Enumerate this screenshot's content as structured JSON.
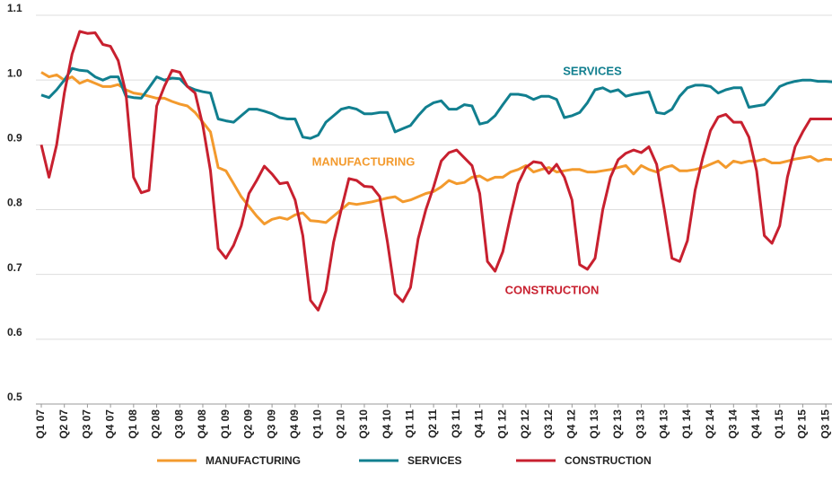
{
  "chart_data": {
    "type": "line",
    "categories": [
      "Q1 07",
      null,
      null,
      "Q2 07",
      null,
      null,
      "Q3 07",
      null,
      null,
      "Q4 07",
      null,
      null,
      "Q1 08",
      null,
      null,
      "Q2 08",
      null,
      null,
      "Q3 08",
      null,
      null,
      "Q4 08",
      null,
      null,
      "Q1 09",
      null,
      null,
      "Q2 09",
      null,
      null,
      "Q3 09",
      null,
      null,
      "Q4 09",
      null,
      null,
      "Q1 10",
      null,
      null,
      "Q2 10",
      null,
      null,
      "Q3 10",
      null,
      null,
      "Q4 10",
      null,
      null,
      "Q1 11",
      null,
      null,
      "Q2 11",
      null,
      null,
      "Q3 11",
      null,
      null,
      "Q4 11",
      null,
      null,
      "Q1 12",
      null,
      null,
      "Q2 12",
      null,
      null,
      "Q3 12",
      null,
      null,
      "Q4 12",
      null,
      null,
      "Q1 13",
      null,
      null,
      "Q2 13",
      null,
      null,
      "Q3 13",
      null,
      null,
      "Q4 13",
      null,
      null,
      "Q1 14",
      null,
      null,
      "Q2 14",
      null,
      null,
      "Q3 14",
      null,
      null,
      "Q4 14",
      null,
      null,
      "Q1 15",
      null,
      null,
      "Q2 15",
      null,
      null,
      "Q3 15",
      null
    ],
    "series": [
      {
        "name": "MANUFACTURING",
        "color": "#f39a2d",
        "values": [
          1.012,
          1.005,
          1.008,
          1.0,
          1.005,
          0.995,
          1.0,
          0.995,
          0.99,
          0.99,
          0.993,
          0.985,
          0.98,
          0.978,
          0.975,
          0.972,
          0.972,
          0.967,
          0.963,
          0.96,
          0.95,
          0.935,
          0.92,
          0.865,
          0.86,
          0.84,
          0.82,
          0.805,
          0.79,
          0.778,
          0.785,
          0.788,
          0.785,
          0.792,
          0.795,
          0.783,
          0.782,
          0.78,
          0.79,
          0.8,
          0.81,
          0.808,
          0.81,
          0.812,
          0.815,
          0.818,
          0.82,
          0.812,
          0.815,
          0.82,
          0.825,
          0.828,
          0.835,
          0.845,
          0.84,
          0.842,
          0.85,
          0.852,
          0.845,
          0.85,
          0.85,
          0.858,
          0.862,
          0.868,
          0.858,
          0.862,
          0.865,
          0.858,
          0.86,
          0.862,
          0.862,
          0.858,
          0.858,
          0.86,
          0.862,
          0.865,
          0.868,
          0.855,
          0.868,
          0.862,
          0.858,
          0.865,
          0.868,
          0.86,
          0.86,
          0.862,
          0.865,
          0.87,
          0.875,
          0.865,
          0.875,
          0.872,
          0.875,
          0.875,
          0.878,
          0.872,
          0.872,
          0.875,
          0.878,
          0.88,
          0.882,
          0.875,
          0.878,
          0.877
        ]
      },
      {
        "name": "SERVICES",
        "color": "#117f8f",
        "values": [
          0.977,
          0.973,
          0.985,
          1.0,
          1.018,
          1.015,
          1.014,
          1.005,
          1.0,
          1.005,
          1.005,
          0.975,
          0.973,
          0.972,
          0.988,
          1.005,
          1.0,
          1.003,
          1.002,
          0.99,
          0.985,
          0.982,
          0.98,
          0.94,
          0.937,
          0.935,
          0.945,
          0.955,
          0.955,
          0.952,
          0.948,
          0.942,
          0.94,
          0.94,
          0.912,
          0.91,
          0.915,
          0.935,
          0.945,
          0.955,
          0.958,
          0.955,
          0.948,
          0.948,
          0.95,
          0.95,
          0.92,
          0.925,
          0.93,
          0.945,
          0.958,
          0.965,
          0.968,
          0.955,
          0.955,
          0.962,
          0.96,
          0.932,
          0.935,
          0.945,
          0.962,
          0.978,
          0.978,
          0.976,
          0.97,
          0.975,
          0.975,
          0.97,
          0.942,
          0.945,
          0.95,
          0.965,
          0.985,
          0.988,
          0.982,
          0.985,
          0.975,
          0.978,
          0.98,
          0.982,
          0.95,
          0.948,
          0.955,
          0.975,
          0.988,
          0.992,
          0.992,
          0.99,
          0.98,
          0.985,
          0.988,
          0.988,
          0.958,
          0.96,
          0.962,
          0.975,
          0.99,
          0.995,
          0.998,
          1.0,
          1.0,
          0.998,
          0.998,
          0.997
        ]
      },
      {
        "name": "CONSTRUCTION",
        "color": "#c8202f",
        "values": [
          0.9,
          0.85,
          0.9,
          0.98,
          1.04,
          1.075,
          1.072,
          1.073,
          1.055,
          1.052,
          1.03,
          0.98,
          0.85,
          0.826,
          0.83,
          0.96,
          0.99,
          1.015,
          1.012,
          0.99,
          0.98,
          0.93,
          0.86,
          0.74,
          0.725,
          0.745,
          0.775,
          0.825,
          0.845,
          0.867,
          0.855,
          0.84,
          0.842,
          0.815,
          0.76,
          0.66,
          0.645,
          0.675,
          0.75,
          0.8,
          0.848,
          0.845,
          0.836,
          0.835,
          0.82,
          0.75,
          0.67,
          0.658,
          0.68,
          0.755,
          0.8,
          0.835,
          0.875,
          0.888,
          0.892,
          0.88,
          0.868,
          0.825,
          0.72,
          0.705,
          0.735,
          0.79,
          0.84,
          0.865,
          0.874,
          0.872,
          0.856,
          0.87,
          0.85,
          0.815,
          0.715,
          0.708,
          0.725,
          0.8,
          0.85,
          0.877,
          0.887,
          0.892,
          0.888,
          0.897,
          0.87,
          0.8,
          0.725,
          0.72,
          0.752,
          0.83,
          0.88,
          0.922,
          0.943,
          0.947,
          0.935,
          0.935,
          0.912,
          0.86,
          0.76,
          0.748,
          0.775,
          0.85,
          0.897,
          0.92,
          0.94,
          0.94,
          0.94,
          0.94
        ]
      }
    ],
    "annotations": [
      {
        "text": "SERVICES"
      },
      {
        "text": "MANUFACTURING"
      },
      {
        "text": "CONSTRUCTION"
      }
    ],
    "ylim": [
      0.5,
      1.1
    ],
    "yticks": [
      0.5,
      0.6,
      0.7,
      0.8,
      0.9,
      {
        "value": 1,
        "label": "1.0"
      },
      1.1
    ],
    "grid": true,
    "legend": "bottom"
  }
}
